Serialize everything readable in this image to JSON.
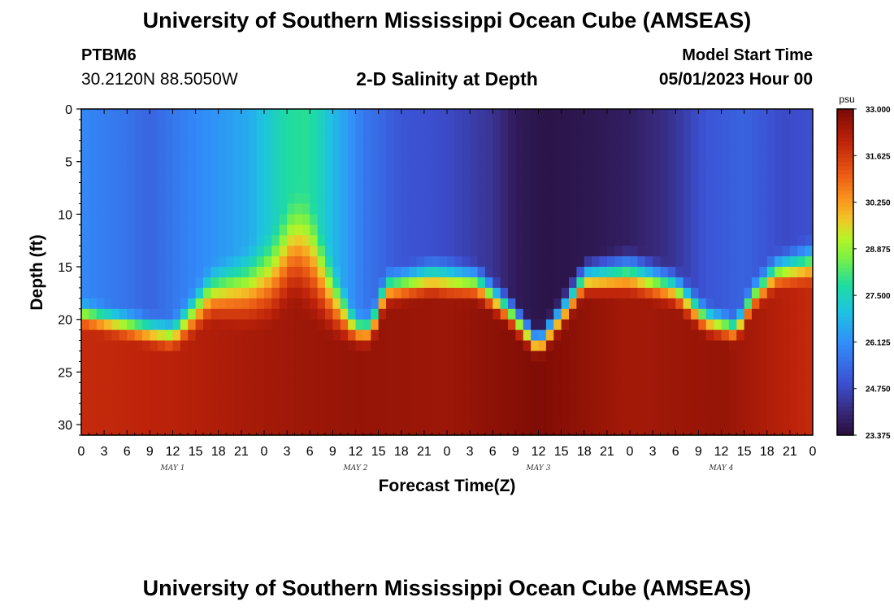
{
  "header": {
    "title": "University of Southern Mississippi Ocean Cube (AMSEAS)",
    "station_id": "PTBM6",
    "station_coords": "30.2120N  88.5050W",
    "subtitle": "2-D Salinity at Depth",
    "model_start_label": "Model Start Time",
    "model_start_value": "05/01/2023 Hour 00"
  },
  "footer": {
    "title": "University of Southern Mississippi Ocean Cube (AMSEAS)"
  },
  "chart_data": {
    "type": "heatmap",
    "title": "2-D Salinity at Depth",
    "xlabel": "Forecast Time(Z)",
    "ylabel": "Depth (ft)",
    "x_unit_hours": [
      0,
      96
    ],
    "xlim_hours": [
      0,
      96
    ],
    "ylim": [
      0,
      31
    ],
    "y_ticks": [
      0,
      5,
      10,
      15,
      20,
      25,
      30
    ],
    "x_tick_labels": [
      "0",
      "3",
      "6",
      "9",
      "12",
      "15",
      "18",
      "21",
      "0",
      "3",
      "6",
      "9",
      "12",
      "15",
      "18",
      "21",
      "0",
      "3",
      "6",
      "9",
      "12",
      "15",
      "18",
      "21",
      "0",
      "3",
      "6",
      "9",
      "12",
      "15",
      "18",
      "21",
      "0"
    ],
    "day_labels": [
      {
        "text": "MAY 1",
        "hour": 12
      },
      {
        "text": "MAY 2",
        "hour": 36
      },
      {
        "text": "MAY 3",
        "hour": 60
      },
      {
        "text": "MAY 4",
        "hour": 84
      }
    ],
    "colorbar": {
      "unit": "psu",
      "min": 23.375,
      "max": 33.0,
      "tick_labels": [
        "33.000",
        "31.625",
        "30.250",
        "28.875",
        "27.500",
        "26.125",
        "24.750",
        "23.375"
      ]
    },
    "surface_salinity": [
      {
        "hour": 0,
        "value": 26.0
      },
      {
        "hour": 6,
        "value": 25.6
      },
      {
        "hour": 9,
        "value": 25.3
      },
      {
        "hour": 14,
        "value": 25.9
      },
      {
        "hour": 22,
        "value": 26.6
      },
      {
        "hour": 27,
        "value": 27.8
      },
      {
        "hour": 30,
        "value": 27.9
      },
      {
        "hour": 33,
        "value": 26.9
      },
      {
        "hour": 37,
        "value": 25.7
      },
      {
        "hour": 42,
        "value": 25.0
      },
      {
        "hour": 48,
        "value": 24.8
      },
      {
        "hour": 54,
        "value": 24.3
      },
      {
        "hour": 57,
        "value": 23.7
      },
      {
        "hour": 61,
        "value": 23.5
      },
      {
        "hour": 66,
        "value": 23.6
      },
      {
        "hour": 72,
        "value": 23.8
      },
      {
        "hour": 77,
        "value": 24.2
      },
      {
        "hour": 82,
        "value": 25.0
      },
      {
        "hour": 87,
        "value": 25.3
      },
      {
        "hour": 92,
        "value": 24.8
      },
      {
        "hour": 96,
        "value": 24.9
      }
    ],
    "halocline_depth_ft": [
      {
        "hour": 0,
        "value": 19.5
      },
      {
        "hour": 6,
        "value": 20.5
      },
      {
        "hour": 12,
        "value": 21.5
      },
      {
        "hour": 14,
        "value": 20.0
      },
      {
        "hour": 17,
        "value": 17.5
      },
      {
        "hour": 22,
        "value": 17.0
      },
      {
        "hour": 25,
        "value": 16.0
      },
      {
        "hour": 28,
        "value": 13.0
      },
      {
        "hour": 30,
        "value": 14.0
      },
      {
        "hour": 33,
        "value": 18.0
      },
      {
        "hour": 36,
        "value": 21.0
      },
      {
        "hour": 38,
        "value": 21.0
      },
      {
        "hour": 40,
        "value": 17.0
      },
      {
        "hour": 46,
        "value": 16.0
      },
      {
        "hour": 52,
        "value": 16.5
      },
      {
        "hour": 56,
        "value": 19.0
      },
      {
        "hour": 60,
        "value": 22.5
      },
      {
        "hour": 63,
        "value": 19.5
      },
      {
        "hour": 66,
        "value": 16.0
      },
      {
        "hour": 72,
        "value": 15.5
      },
      {
        "hour": 78,
        "value": 17.0
      },
      {
        "hour": 82,
        "value": 20.0
      },
      {
        "hour": 86,
        "value": 21.0
      },
      {
        "hour": 88,
        "value": 18.0
      },
      {
        "hour": 91,
        "value": 15.5
      },
      {
        "hour": 96,
        "value": 14.5
      }
    ],
    "halocline_thickness_ft": [
      {
        "hour": 0,
        "value": 3.5
      },
      {
        "hour": 12,
        "value": 4.0
      },
      {
        "hour": 30,
        "value": 13.0
      },
      {
        "hour": 36,
        "value": 4.0
      },
      {
        "hour": 48,
        "value": 5.0
      },
      {
        "hour": 60,
        "value": 3.5
      },
      {
        "hour": 72,
        "value": 5.5
      },
      {
        "hour": 86,
        "value": 3.5
      },
      {
        "hour": 96,
        "value": 5.5
      }
    ],
    "bottom_salinity": [
      {
        "hour": 0,
        "value": 31.9
      },
      {
        "hour": 12,
        "value": 32.1
      },
      {
        "hour": 24,
        "value": 32.4
      },
      {
        "hour": 36,
        "value": 32.6
      },
      {
        "hour": 48,
        "value": 32.5
      },
      {
        "hour": 60,
        "value": 32.9
      },
      {
        "hour": 72,
        "value": 32.4
      },
      {
        "hour": 84,
        "value": 32.6
      },
      {
        "hour": 96,
        "value": 31.9
      }
    ]
  }
}
